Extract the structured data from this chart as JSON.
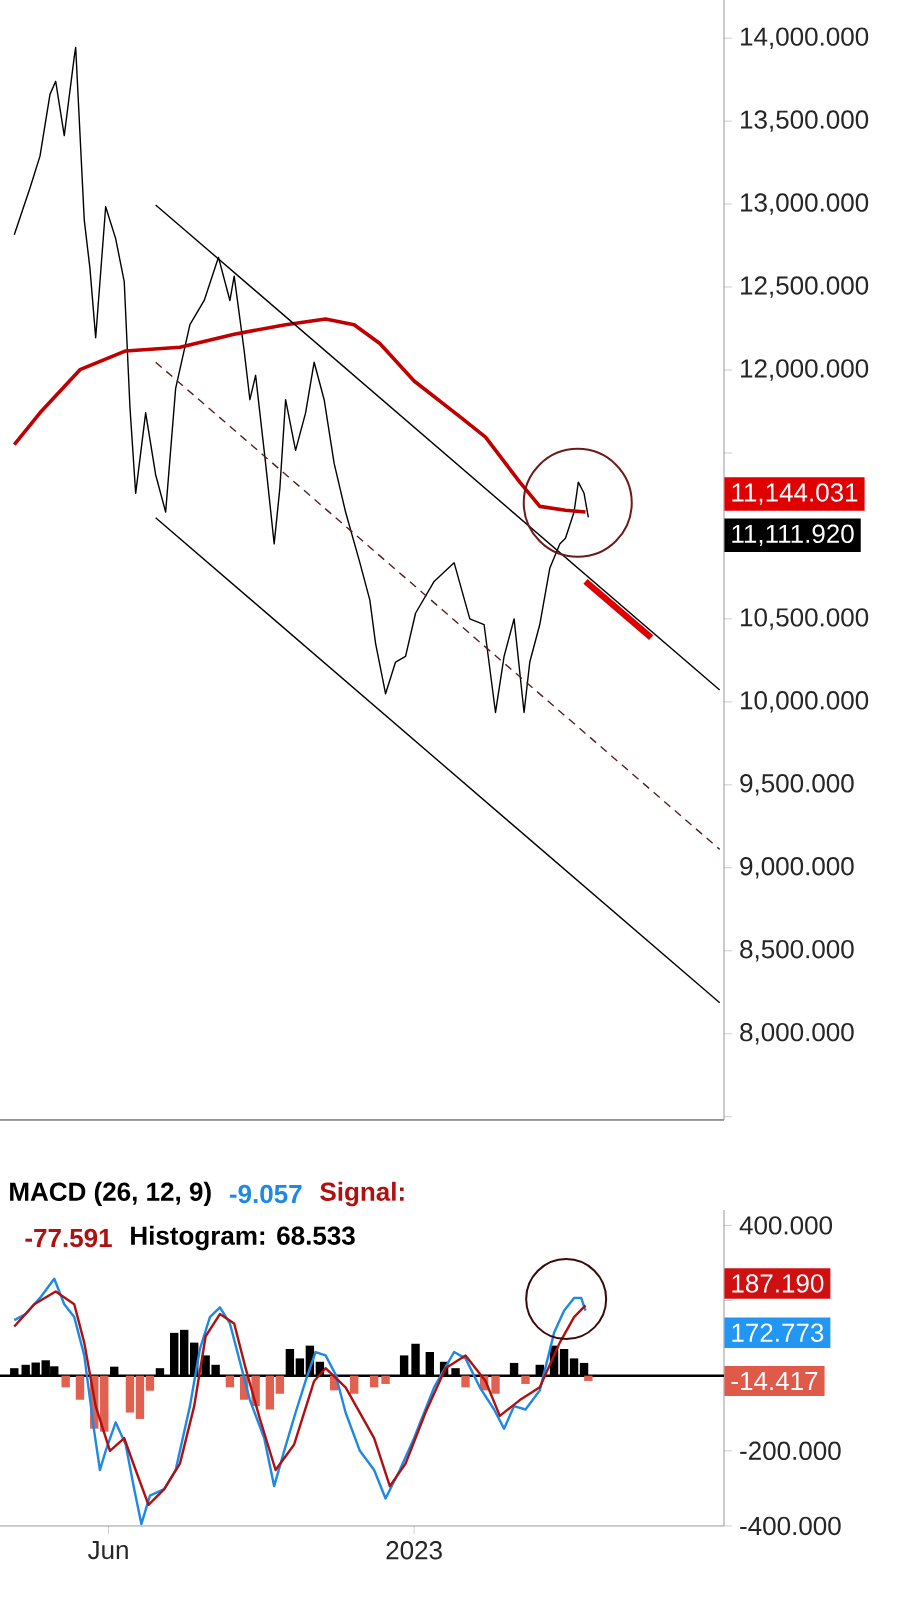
{
  "chart_data": [
    {
      "type": "line",
      "xlim": [
        "2022-03-17",
        "2023-08-06"
      ],
      "ylim": [
        7480,
        14230
      ],
      "tick_labels": "y",
      "yticks": [
        {
          "value": 7500,
          "label": null
        },
        {
          "value": 8000,
          "label": "8,000.000"
        },
        {
          "value": 8500,
          "label": "8,500.000"
        },
        {
          "value": 9000,
          "label": "9,000.000"
        },
        {
          "value": 9500,
          "label": "9,500.000"
        },
        {
          "value": 10000,
          "label": "10,000.000"
        },
        {
          "value": 10500,
          "label": "10,500.000"
        },
        {
          "value": 11000,
          "label": null
        },
        {
          "value": 11500,
          "label": null
        },
        {
          "value": 12000,
          "label": "12,000.000"
        },
        {
          "value": 12500,
          "label": "12,500.000"
        },
        {
          "value": 13000,
          "label": "13,000.000"
        },
        {
          "value": 13500,
          "label": "13,500.000"
        },
        {
          "value": 14000,
          "label": "14,000.000"
        }
      ],
      "annotations": [
        "11,144.031",
        "11,111.920"
      ],
      "series": [
        {
          "color": "#000000",
          "x": [
            "2022-03-27",
            "2022-04-07",
            "2022-04-14",
            "2022-04-21",
            "2022-04-25",
            "2022-05-01",
            "2022-05-08",
            "2022-05-09",
            "2022-05-15",
            "2022-05-19",
            "2022-05-23",
            "2022-05-30",
            "2022-06-06",
            "2022-06-12",
            "2022-06-16",
            "2022-06-20",
            "2022-06-27",
            "2022-07-04",
            "2022-07-11",
            "2022-07-18",
            "2022-07-28",
            "2022-08-07",
            "2022-08-17",
            "2022-08-25",
            "2022-08-28",
            "2022-09-04",
            "2022-09-08",
            "2022-09-12",
            "2022-09-19",
            "2022-09-25",
            "2022-09-29",
            "2022-10-03",
            "2022-10-10",
            "2022-10-17",
            "2022-10-23",
            "2022-10-30",
            "2022-11-06",
            "2022-11-14",
            "2022-11-24",
            "2022-12-01",
            "2022-12-05",
            "2022-12-12",
            "2022-12-19",
            "2022-12-26",
            "2023-01-02",
            "2023-01-15",
            "2023-01-29",
            "2023-02-09",
            "2023-02-19",
            "2023-02-27",
            "2023-03-05",
            "2023-03-12",
            "2023-03-19",
            "2023-03-23",
            "2023-03-30",
            "2023-04-06",
            "2023-04-13",
            "2023-04-17",
            "2023-04-23",
            "2023-04-26",
            "2023-04-30",
            "2023-05-03"
          ],
          "values": [
            12815,
            13097,
            13289,
            13661,
            13740,
            13413,
            13887,
            13944,
            12905,
            12611,
            12194,
            12984,
            12792,
            12532,
            11776,
            11257,
            11742,
            11369,
            11144,
            11889,
            12273,
            12419,
            12679,
            12419,
            12566,
            12115,
            11821,
            11968,
            11437,
            10952,
            11290,
            11821,
            11516,
            11742,
            12047,
            11821,
            11437,
            11144,
            10839,
            10613,
            10353,
            10049,
            10240,
            10274,
            10534,
            10726,
            10839,
            10500,
            10466,
            9936,
            10274,
            10500,
            9936,
            10240,
            10466,
            10805,
            10952,
            10986,
            11144,
            11324,
            11257,
            11112
          ]
        },
        {
          "color": "#c00000",
          "x": [
            "2022-03-27",
            "2022-04-14",
            "2022-05-12",
            "2022-06-13",
            "2022-07-21",
            "2022-08-28",
            "2022-10-03",
            "2022-10-31",
            "2022-11-20",
            "2022-12-08",
            "2023-01-01",
            "2023-02-02",
            "2023-02-20",
            "2023-03-16",
            "2023-03-30",
            "2023-04-17",
            "2023-05-01"
          ],
          "values": [
            11550,
            11742,
            12002,
            12115,
            12137,
            12216,
            12273,
            12307,
            12273,
            12160,
            11934,
            11719,
            11595,
            11324,
            11178,
            11155,
            11144
          ]
        },
        {
          "color": "#e00000",
          "x": [
            "2023-05-01",
            "2023-06-16"
          ],
          "values": [
            10726,
            10387
          ]
        },
        {
          "color": "#000000",
          "x": [
            "2022-07-04",
            "2023-08-03"
          ],
          "values": [
            12995,
            10071
          ]
        },
        {
          "color": "#5c1e1e",
          "line_style": "dashed",
          "x": [
            "2022-07-04",
            "2023-08-03"
          ],
          "values": [
            12047,
            9111
          ]
        },
        {
          "color": "#000000",
          "x": [
            "2022-07-04",
            "2023-08-03"
          ],
          "values": [
            11110,
            8186
          ]
        }
      ]
    },
    {
      "type": "line",
      "title": "MACD (26, 12, 9)",
      "xlim": [
        "2022-03-17",
        "2023-08-06"
      ],
      "ylim": [
        -400,
        441
      ],
      "xticks": [
        {
          "value": "2022-06-01",
          "label": "Jun"
        },
        {
          "value": "2023-01-01",
          "label": "2023"
        }
      ],
      "yticks": [
        {
          "value": -400,
          "label": "-400.000"
        },
        {
          "value": -200,
          "label": "-200.000"
        },
        {
          "value": 0,
          "label": null
        },
        {
          "value": 200,
          "label": null
        },
        {
          "value": 400,
          "label": "400.000"
        }
      ],
      "ref_lines": [
        {
          "axis": "y",
          "value": 0,
          "color": "#000000"
        }
      ],
      "annotations": [
        "-9.057",
        "Signal:",
        "-77.591",
        "Histogram: 68.533",
        "187.190",
        "172.773",
        "-14.417"
      ],
      "series": [
        {
          "type": "bar",
          "x": [
            "2022-03-27",
            "2022-04-04",
            "2022-04-11",
            "2022-04-18",
            "2022-04-24",
            "2022-05-02",
            "2022-05-12",
            "2022-05-22",
            "2022-05-29",
            "2022-06-05",
            "2022-06-16",
            "2022-06-23",
            "2022-06-30",
            "2022-07-07",
            "2022-07-17",
            "2022-07-24",
            "2022-07-31",
            "2022-08-08",
            "2022-08-15",
            "2022-08-25",
            "2022-09-04",
            "2022-09-12",
            "2022-09-22",
            "2022-09-29",
            "2022-10-06",
            "2022-10-13",
            "2022-10-20",
            "2022-10-27",
            "2022-11-06",
            "2022-11-20",
            "2022-12-04",
            "2022-12-12",
            "2022-12-25",
            "2023-01-02",
            "2023-01-12",
            "2023-01-22",
            "2023-01-30",
            "2023-02-06",
            "2023-02-19",
            "2023-02-27",
            "2023-03-12",
            "2023-03-20",
            "2023-03-30",
            "2023-04-09",
            "2023-04-16",
            "2023-04-23",
            "2023-04-30",
            "2023-05-03"
          ],
          "values": [
            20,
            29,
            35,
            41,
            25,
            -31,
            -64,
            -141,
            -149,
            24,
            -98,
            -115,
            -40,
            20,
            114,
            122,
            88,
            54,
            29,
            -31,
            -64,
            -81,
            -90,
            -48,
            71,
            46,
            80,
            37,
            -39,
            -48,
            -31,
            -22,
            54,
            85,
            63,
            37,
            20,
            -31,
            -39,
            -48,
            34,
            -22,
            29,
            80,
            71,
            46,
            34,
            -14
          ],
          "colors": [
            "#000000",
            "#000000",
            "#000000",
            "#000000",
            "#000000",
            "#e0614f",
            "#e0614f",
            "#e0614f",
            "#e0614f",
            "#000000",
            "#e0614f",
            "#e0614f",
            "#e0614f",
            "#000000",
            "#000000",
            "#000000",
            "#000000",
            "#000000",
            "#000000",
            "#e0614f",
            "#e0614f",
            "#e0614f",
            "#e0614f",
            "#e0614f",
            "#000000",
            "#000000",
            "#000000",
            "#000000",
            "#e0614f",
            "#e0614f",
            "#e0614f",
            "#e0614f",
            "#000000",
            "#000000",
            "#000000",
            "#000000",
            "#000000",
            "#e0614f",
            "#e0614f",
            "#e0614f",
            "#000000",
            "#e0614f",
            "#000000",
            "#000000",
            "#000000",
            "#000000",
            "#000000",
            "#e0614f"
          ]
        },
        {
          "type": "line",
          "color": "#1e88e5",
          "x": [
            "2022-03-27",
            "2022-04-04",
            "2022-04-14",
            "2022-04-24",
            "2022-05-01",
            "2022-05-08",
            "2022-05-15",
            "2022-05-22",
            "2022-05-26",
            "2022-05-30",
            "2022-06-06",
            "2022-06-13",
            "2022-06-19",
            "2022-06-24",
            "2022-06-30",
            "2022-07-10",
            "2022-07-18",
            "2022-07-28",
            "2022-08-04",
            "2022-08-11",
            "2022-08-18",
            "2022-08-25",
            "2022-09-01",
            "2022-09-08",
            "2022-09-18",
            "2022-09-25",
            "2022-10-02",
            "2022-10-10",
            "2022-10-17",
            "2022-10-24",
            "2022-10-31",
            "2022-11-07",
            "2022-11-14",
            "2022-11-24",
            "2022-12-04",
            "2022-12-12",
            "2022-12-22",
            "2023-01-01",
            "2023-01-15",
            "2023-01-29",
            "2023-02-06",
            "2023-02-16",
            "2023-02-26",
            "2023-03-05",
            "2023-03-12",
            "2023-03-20",
            "2023-03-30",
            "2023-04-09",
            "2023-04-16",
            "2023-04-23",
            "2023-04-28",
            "2023-05-01"
          ],
          "values": [
            148,
            164,
            207,
            258,
            190,
            156,
            54,
            -149,
            -251,
            -200,
            -124,
            -183,
            -302,
            -395,
            -319,
            -302,
            -251,
            -81,
            71,
            156,
            182,
            139,
            37,
            -65,
            -166,
            -294,
            -200,
            -98,
            -14,
            63,
            54,
            3,
            -98,
            -200,
            -251,
            -327,
            -251,
            -166,
            -31,
            63,
            46,
            -31,
            -90,
            -141,
            -81,
            -90,
            -39,
            114,
            173,
            207,
            207,
            173
          ]
        },
        {
          "type": "line",
          "color": "#b01010",
          "x": [
            "2022-03-27",
            "2022-04-10",
            "2022-04-25",
            "2022-05-08",
            "2022-05-15",
            "2022-05-23",
            "2022-06-02",
            "2022-06-12",
            "2022-06-20",
            "2022-06-29",
            "2022-07-10",
            "2022-07-21",
            "2022-07-31",
            "2022-08-08",
            "2022-08-18",
            "2022-08-28",
            "2022-09-05",
            "2022-09-15",
            "2022-09-26",
            "2022-10-09",
            "2022-10-23",
            "2022-10-31",
            "2022-11-14",
            "2022-12-04",
            "2022-12-15",
            "2022-12-26",
            "2023-01-09",
            "2023-01-23",
            "2023-02-06",
            "2023-02-20",
            "2023-03-02",
            "2023-03-16",
            "2023-03-30",
            "2023-04-13",
            "2023-04-23",
            "2023-05-01"
          ],
          "values": [
            131,
            190,
            224,
            190,
            88,
            -81,
            -200,
            -166,
            -251,
            -344,
            -302,
            -234,
            -81,
            105,
            164,
            139,
            20,
            -115,
            -251,
            -183,
            -14,
            20,
            -31,
            -166,
            -294,
            -234,
            -98,
            20,
            54,
            -14,
            -107,
            -65,
            -31,
            88,
            156,
            187
          ]
        }
      ]
    }
  ]
}
